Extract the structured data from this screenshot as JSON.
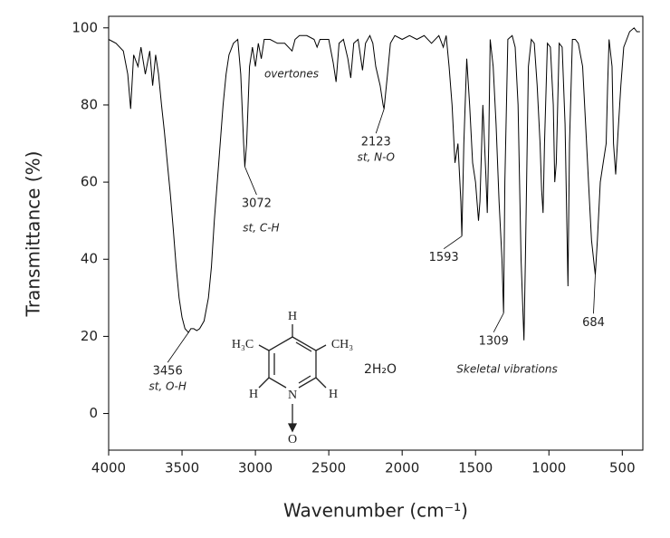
{
  "chart_data": {
    "type": "line",
    "xlabel": "Wavenumber (cm⁻¹)",
    "ylabel": "Transmittance (%)",
    "xlim": [
      4000,
      360
    ],
    "ylim": [
      -9.5,
      103
    ],
    "xticks": [
      4000,
      3500,
      3000,
      2500,
      2000,
      1500,
      1000,
      500
    ],
    "yticks": [
      0,
      20,
      40,
      60,
      80,
      100
    ],
    "color": "#000000",
    "x": [
      4000,
      3950,
      3900,
      3870,
      3850,
      3830,
      3800,
      3780,
      3750,
      3720,
      3700,
      3680,
      3660,
      3640,
      3620,
      3600,
      3580,
      3560,
      3540,
      3520,
      3500,
      3480,
      3456,
      3440,
      3420,
      3400,
      3380,
      3350,
      3320,
      3300,
      3280,
      3250,
      3220,
      3200,
      3180,
      3150,
      3120,
      3100,
      3080,
      3072,
      3060,
      3040,
      3020,
      3000,
      2980,
      2960,
      2940,
      2900,
      2850,
      2800,
      2750,
      2730,
      2700,
      2650,
      2600,
      2580,
      2560,
      2500,
      2470,
      2450,
      2430,
      2400,
      2370,
      2350,
      2330,
      2300,
      2270,
      2250,
      2220,
      2200,
      2180,
      2150,
      2130,
      2123,
      2100,
      2080,
      2050,
      2000,
      1950,
      1900,
      1850,
      1800,
      1750,
      1720,
      1700,
      1680,
      1660,
      1640,
      1620,
      1600,
      1593,
      1580,
      1560,
      1540,
      1520,
      1500,
      1480,
      1470,
      1450,
      1430,
      1420,
      1410,
      1400,
      1380,
      1360,
      1340,
      1320,
      1309,
      1300,
      1280,
      1250,
      1230,
      1210,
      1190,
      1170,
      1160,
      1140,
      1120,
      1100,
      1080,
      1060,
      1050,
      1040,
      1030,
      1010,
      990,
      970,
      960,
      950,
      930,
      910,
      890,
      870,
      860,
      840,
      820,
      800,
      770,
      750,
      730,
      710,
      690,
      684,
      670,
      650,
      630,
      610,
      600,
      590,
      570,
      560,
      545,
      530,
      510,
      490,
      470,
      450,
      420,
      400,
      380
    ],
    "values": [
      97,
      96,
      94,
      88,
      79,
      93,
      90,
      95,
      88,
      94,
      85,
      93,
      88,
      80,
      73,
      65,
      57,
      48,
      38,
      30,
      25,
      22,
      21,
      22,
      22,
      21.5,
      22,
      24,
      30,
      38,
      50,
      65,
      80,
      88,
      93,
      96,
      97,
      88,
      70,
      64,
      70,
      90,
      95,
      90,
      96,
      92,
      97,
      97,
      96,
      96,
      94,
      97,
      98,
      98,
      97,
      95,
      97,
      97,
      91,
      86,
      96,
      97,
      92,
      87,
      96,
      97,
      89,
      96,
      98,
      96,
      90,
      85,
      80,
      79,
      88,
      96,
      98,
      97,
      98,
      97,
      98,
      96,
      98,
      95,
      98,
      90,
      80,
      65,
      70,
      55,
      46,
      70,
      92,
      80,
      65,
      60,
      50,
      55,
      80,
      62,
      52,
      70,
      97,
      90,
      75,
      55,
      40,
      26,
      60,
      97,
      98,
      95,
      80,
      40,
      19,
      40,
      90,
      97,
      96,
      85,
      70,
      58,
      52,
      70,
      96,
      95,
      80,
      60,
      65,
      96,
      95,
      75,
      33,
      70,
      97,
      97,
      96,
      90,
      75,
      60,
      45,
      38,
      36,
      45,
      60,
      65,
      70,
      85,
      97,
      90,
      70,
      62,
      72,
      85,
      95,
      97,
      99,
      100,
      99,
      99
    ],
    "peaks": [
      {
        "x": 3456,
        "y": 21,
        "note": "st, O-H"
      },
      {
        "x": 3072,
        "y": 64,
        "note": "st, C-H"
      },
      {
        "x": 2123,
        "y": 79,
        "note": "st, N-O"
      },
      {
        "x": 1593,
        "y": 46
      },
      {
        "x": 1309,
        "y": 26
      },
      {
        "x": 684,
        "y": 36
      }
    ],
    "annotations": [
      "overtones",
      "Skeletal vibrations"
    ],
    "structure": {
      "top": "H",
      "left": "H₃C",
      "right": "CH₃",
      "lower_left": "H",
      "lower_right": "H",
      "ring_n": "N",
      "oxide": "O",
      "water": "2H₂O"
    }
  }
}
